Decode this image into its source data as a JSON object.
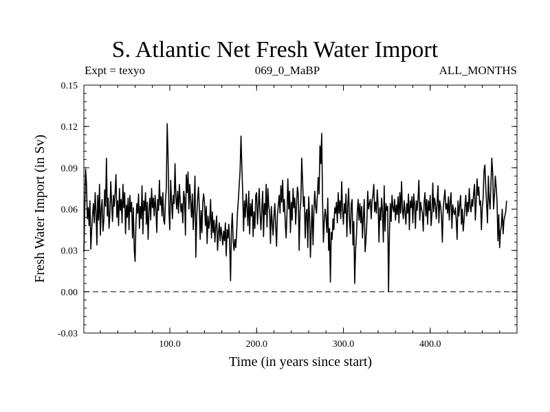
{
  "chart_data": {
    "type": "line",
    "title": "S. Atlantic Net Fresh Water Import",
    "subtitle_left": "Expt = texyo",
    "subtitle_center": "069_0_MaBP",
    "subtitle_right": "ALL_MONTHS",
    "xlabel": "Time (in years since start)",
    "ylabel": "Fresh Water Import (in Sv)",
    "xlim": [
      1,
      500
    ],
    "ylim": [
      -0.03,
      0.15
    ],
    "xticks": [
      100,
      200,
      300,
      400
    ],
    "xtick_labels": [
      "100.0",
      "200.0",
      "300.0",
      "400.0"
    ],
    "yticks": [
      -0.03,
      0.0,
      0.03,
      0.06,
      0.09,
      0.12,
      0.15
    ],
    "ytick_labels": [
      "-0.03",
      "0.00",
      "0.03",
      "0.06",
      "0.09",
      "0.12",
      "0.15"
    ],
    "reference_line": {
      "y": 0.0,
      "style": "dashed"
    },
    "series": [
      {
        "color": "#000000",
        "x_start": 1,
        "x_step": 1,
        "values": [
          0.029,
          0.06,
          0.089,
          0.078,
          0.053,
          0.061,
          0.048,
          0.066,
          0.031,
          0.045,
          0.056,
          0.064,
          0.05,
          0.072,
          0.058,
          0.034,
          0.07,
          0.052,
          0.078,
          0.041,
          0.06,
          0.067,
          0.044,
          0.052,
          0.074,
          0.062,
          0.097,
          0.055,
          0.068,
          0.046,
          0.057,
          0.08,
          0.064,
          0.051,
          0.07,
          0.062,
          0.072,
          0.085,
          0.054,
          0.066,
          0.048,
          0.075,
          0.059,
          0.067,
          0.05,
          0.078,
          0.061,
          0.072,
          0.042,
          0.063,
          0.054,
          0.068,
          0.045,
          0.07,
          0.058,
          0.065,
          0.039,
          0.061,
          0.031,
          0.022,
          0.05,
          0.064,
          0.057,
          0.071,
          0.046,
          0.062,
          0.053,
          0.077,
          0.042,
          0.066,
          0.059,
          0.072,
          0.049,
          0.065,
          0.038,
          0.059,
          0.068,
          0.052,
          0.075,
          0.061,
          0.068,
          0.055,
          0.07,
          0.06,
          0.043,
          0.067,
          0.059,
          0.081,
          0.063,
          0.069,
          0.055,
          0.072,
          0.052,
          0.049,
          0.066,
          0.076,
          0.122,
          0.098,
          0.058,
          0.045,
          0.081,
          0.066,
          0.053,
          0.07,
          0.064,
          0.093,
          0.069,
          0.06,
          0.073,
          0.057,
          0.078,
          0.066,
          0.058,
          0.064,
          0.05,
          0.073,
          0.068,
          0.041,
          0.085,
          0.072,
          0.087,
          0.06,
          0.078,
          0.066,
          0.054,
          0.071,
          0.045,
          0.062,
          0.084,
          0.025,
          0.055,
          0.067,
          0.076,
          0.061,
          0.038,
          0.059,
          0.043,
          0.065,
          0.071,
          0.064,
          0.048,
          0.062,
          0.035,
          0.055,
          0.046,
          0.051,
          0.067,
          0.039,
          0.058,
          0.043,
          0.052,
          0.036,
          0.048,
          0.055,
          0.03,
          0.042,
          0.05,
          0.037,
          0.047,
          0.041,
          0.034,
          0.044,
          0.037,
          0.05,
          0.026,
          0.045,
          0.039,
          0.049,
          0.034,
          0.008,
          0.045,
          0.057,
          0.037,
          0.03,
          0.038,
          0.032,
          0.043,
          0.058,
          0.067,
          0.078,
          0.088,
          0.113,
          0.091,
          0.072,
          0.044,
          0.066,
          0.054,
          0.071,
          0.061,
          0.048,
          0.073,
          0.042,
          0.064,
          0.055,
          0.067,
          0.04,
          0.058,
          0.046,
          0.07,
          0.072,
          0.049,
          0.062,
          0.075,
          0.057,
          0.045,
          0.06,
          0.073,
          0.04,
          0.064,
          0.056,
          0.078,
          0.047,
          0.075,
          0.062,
          0.058,
          0.035,
          0.062,
          0.05,
          0.041,
          0.055,
          0.064,
          0.047,
          0.033,
          0.056,
          0.063,
          0.07,
          0.057,
          0.077,
          0.065,
          0.081,
          0.058,
          0.067,
          0.05,
          0.039,
          0.057,
          0.082,
          0.06,
          0.073,
          0.043,
          0.065,
          0.052,
          0.075,
          0.061,
          0.068,
          0.049,
          0.063,
          0.076,
          0.071,
          0.03,
          0.058,
          0.066,
          0.097,
          0.08,
          0.062,
          0.069,
          0.039,
          0.057,
          0.06,
          0.032,
          0.069,
          0.055,
          0.025,
          0.046,
          0.063,
          0.034,
          0.058,
          0.073,
          0.062,
          0.057,
          0.07,
          0.083,
          0.071,
          0.106,
          0.093,
          0.115,
          0.066,
          0.036,
          0.052,
          0.06,
          0.054,
          0.043,
          0.068,
          0.03,
          0.046,
          0.007,
          0.043,
          0.038,
          0.053,
          0.045,
          0.061,
          0.057,
          0.065,
          0.05,
          0.072,
          0.057,
          0.066,
          0.053,
          0.08,
          0.06,
          0.049,
          0.064,
          0.057,
          0.071,
          0.04,
          0.062,
          0.075,
          0.052,
          0.042,
          0.063,
          0.067,
          0.034,
          0.051,
          0.006,
          0.03,
          0.04,
          0.058,
          0.067,
          0.052,
          0.064,
          0.05,
          0.062,
          0.039,
          0.055,
          0.067,
          0.029,
          0.038,
          0.05,
          0.073,
          0.06,
          0.064,
          0.067,
          0.053,
          0.066,
          0.07,
          0.078,
          0.058,
          0.065,
          0.057,
          0.074,
          0.063,
          0.036,
          0.061,
          0.052,
          0.068,
          0.059,
          0.036,
          0.077,
          0.044,
          0.064,
          0.059,
          0.062,
          0.0,
          0.041,
          0.064,
          0.051,
          0.07,
          0.061,
          0.058,
          0.067,
          0.052,
          0.063,
          0.056,
          0.069,
          0.05,
          0.072,
          0.057,
          0.08,
          0.06,
          0.053,
          0.066,
          0.058,
          0.049,
          0.064,
          0.057,
          0.071,
          0.045,
          0.066,
          0.061,
          0.069,
          0.05,
          0.071,
          0.063,
          0.046,
          0.066,
          0.059,
          0.068,
          0.081,
          0.052,
          0.065,
          0.06,
          0.057,
          0.044,
          0.065,
          0.072,
          0.055,
          0.067,
          0.049,
          0.066,
          0.059,
          0.07,
          0.048,
          0.056,
          0.079,
          0.058,
          0.068,
          0.063,
          0.053,
          0.065,
          0.077,
          0.05,
          0.066,
          0.062,
          0.055,
          0.036,
          0.061,
          0.068,
          0.074,
          0.06,
          0.064,
          0.057,
          0.069,
          0.052,
          0.065,
          0.072,
          0.046,
          0.063,
          0.058,
          0.056,
          0.061,
          0.052,
          0.038,
          0.066,
          0.055,
          0.063,
          0.07,
          0.049,
          0.06,
          0.044,
          0.052,
          0.062,
          0.07,
          0.055,
          0.065,
          0.058,
          0.075,
          0.062,
          0.058,
          0.067,
          0.062,
          0.071,
          0.078,
          0.052,
          0.066,
          0.082,
          0.07,
          0.076,
          0.063,
          0.066,
          0.045,
          0.061,
          0.068,
          0.088,
          0.092,
          0.076,
          0.063,
          0.05,
          0.084,
          0.067,
          0.06,
          0.078,
          0.097,
          0.086,
          0.06,
          0.07,
          0.084,
          0.076,
          0.066,
          0.037,
          0.056,
          0.032,
          0.044,
          0.048,
          0.06,
          0.042,
          0.052,
          0.055,
          0.058,
          0.066
        ]
      }
    ]
  }
}
